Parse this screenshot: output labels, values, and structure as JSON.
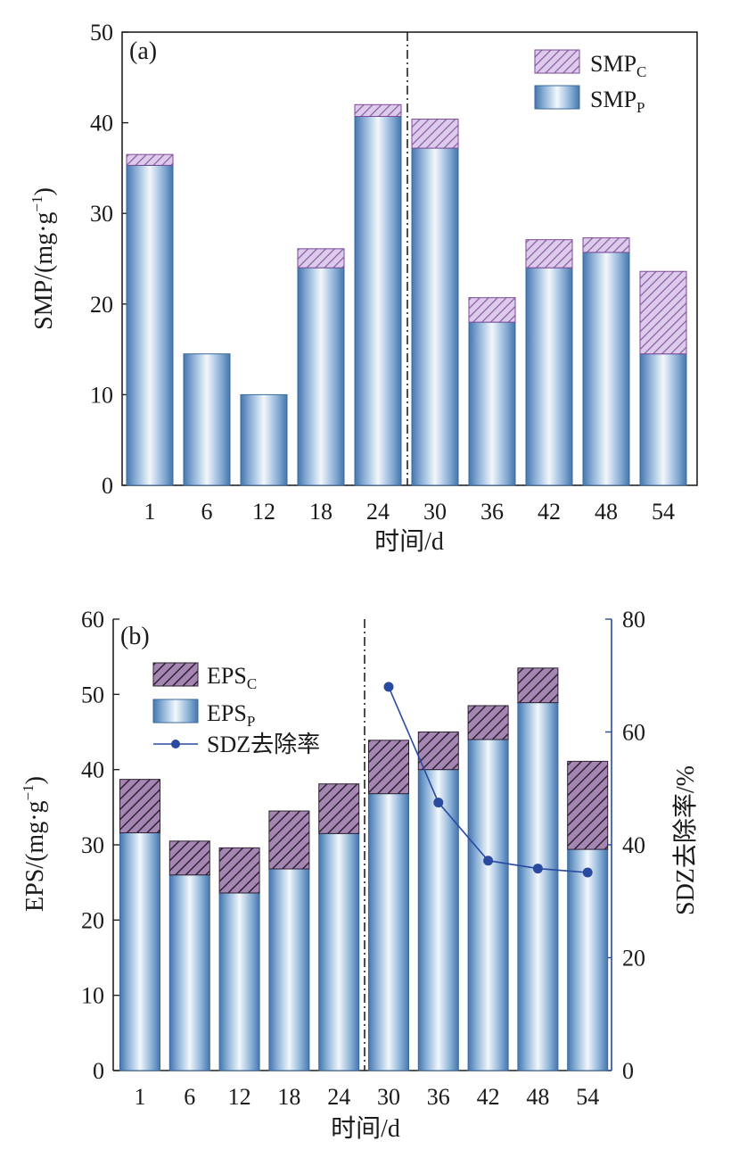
{
  "chart_data": [
    {
      "type": "bar",
      "stacked": true,
      "panel_label": "(a)",
      "xlabel": "时间/d",
      "ylabel": "SMP/(mg·g",
      "ylabel_sup": "−1",
      "ylabel_close": ")",
      "ylim": [
        0,
        50
      ],
      "yticks": [
        "0",
        "10",
        "20",
        "30",
        "40",
        "50"
      ],
      "categories": [
        "1",
        "6",
        "12",
        "18",
        "24",
        "30",
        "36",
        "42",
        "48",
        "54"
      ],
      "divider_after_index": 4,
      "legend_position": "top-right",
      "series": [
        {
          "name": "SMP",
          "name_sub": "P",
          "values": [
            35.3,
            14.5,
            10.0,
            24.0,
            40.7,
            37.2,
            18.0,
            24.0,
            25.7,
            14.5
          ]
        },
        {
          "name": "SMP",
          "name_sub": "C",
          "values": [
            1.2,
            0.0,
            0.0,
            2.1,
            1.3,
            3.2,
            2.7,
            3.1,
            1.6,
            9.1
          ]
        }
      ],
      "legend_order": [
        1,
        0
      ],
      "colors": {
        "base": "#4a7fb5",
        "highlight": "#eef4fb",
        "hatch_fill": "#d9c6e8",
        "hatch_line": "#8a5aa5"
      }
    },
    {
      "type": "bar",
      "stacked": true,
      "panel_label": "(b)",
      "xlabel": "时间/d",
      "ylabel": "EPS/(mg·g",
      "ylabel_sup": "−1",
      "ylabel_close": ")",
      "y2label": "SDZ去除率/%",
      "ylim": [
        0,
        60
      ],
      "y2lim": [
        0,
        80
      ],
      "yticks": [
        "0",
        "10",
        "20",
        "30",
        "40",
        "50",
        "60"
      ],
      "y2ticks": [
        "0",
        "20",
        "40",
        "60",
        "80"
      ],
      "categories": [
        "1",
        "6",
        "12",
        "18",
        "24",
        "30",
        "36",
        "42",
        "48",
        "54"
      ],
      "divider_after_index": 4,
      "legend_position": "top-left",
      "series": [
        {
          "name": "EPS",
          "name_sub": "P",
          "values": [
            31.6,
            26.0,
            23.6,
            26.8,
            31.5,
            36.8,
            40.0,
            44.0,
            48.9,
            29.4
          ]
        },
        {
          "name": "EPS",
          "name_sub": "C",
          "values": [
            7.1,
            4.5,
            6.0,
            7.7,
            6.6,
            7.1,
            5.0,
            4.5,
            4.6,
            11.7
          ]
        }
      ],
      "legend_order": [
        1,
        0
      ],
      "line_series": {
        "name": "SDZ去除率",
        "axis": "right",
        "categories": [
          "30",
          "36",
          "42",
          "48",
          "54"
        ],
        "values": [
          68.0,
          47.5,
          37.2,
          35.8,
          35.1
        ],
        "color": "#2a4aa0"
      },
      "colors": {
        "base": "#4a7fb5",
        "highlight": "#eef4fb",
        "hatch_fill": "#9c7aa8",
        "hatch_line": "#3a2a3f",
        "right_axis": "#2a4aa0"
      }
    }
  ]
}
